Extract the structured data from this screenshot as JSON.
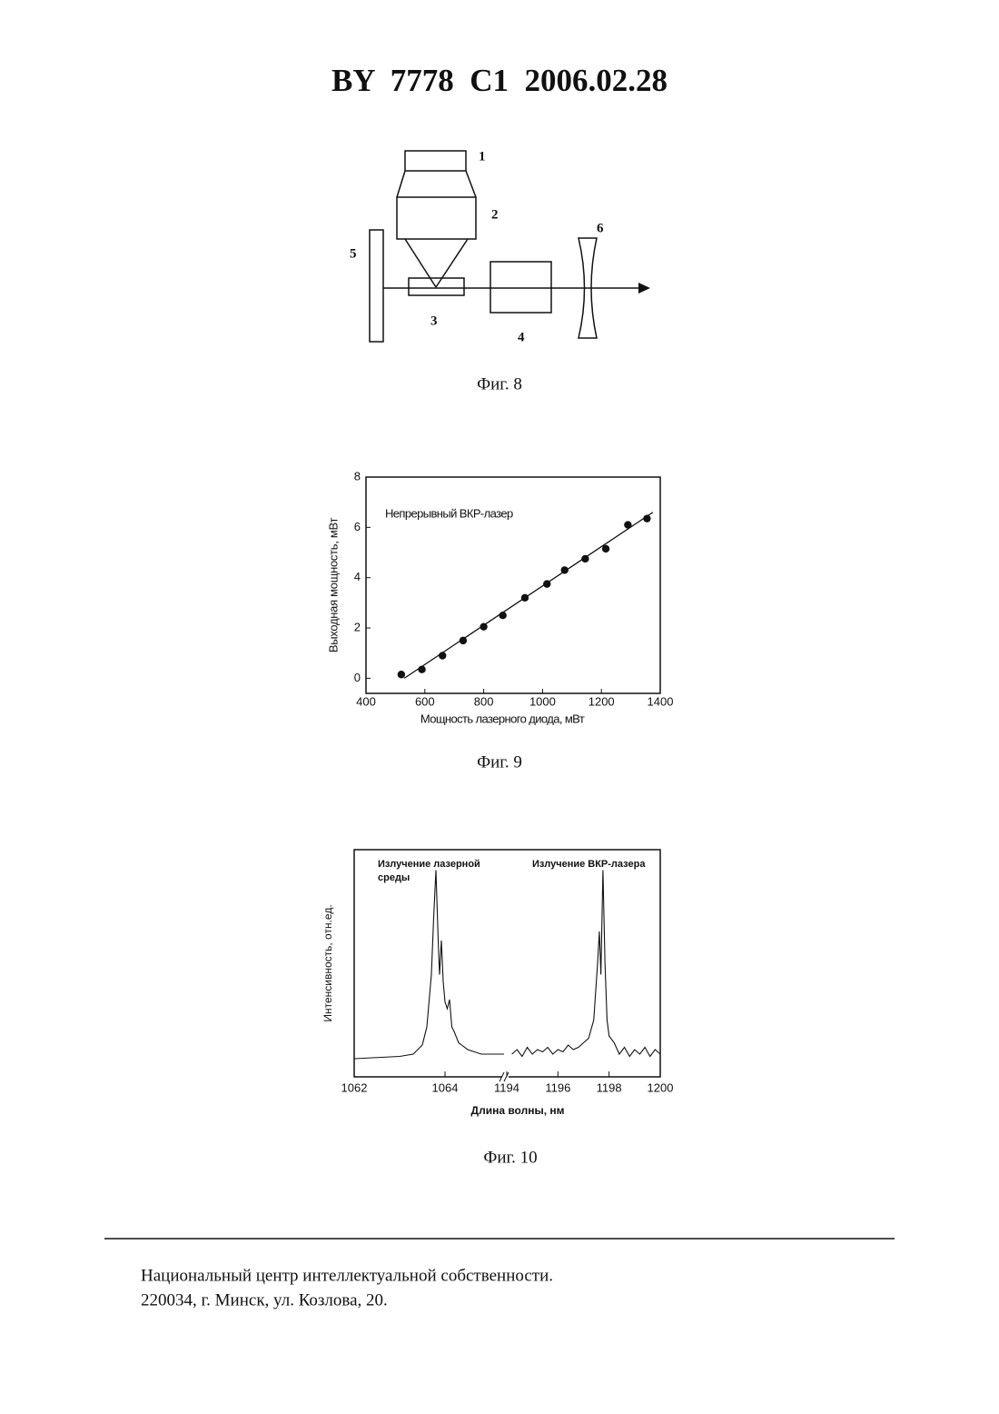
{
  "header": {
    "title": "BY  7778  C1  2006.02.28"
  },
  "figure8": {
    "labels": [
      "1",
      "2",
      "3",
      "4",
      "5",
      "6"
    ],
    "caption": "Фиг. 8"
  },
  "captions": [
    "Фиг. 9",
    "Фиг. 10"
  ],
  "chart_data": [
    {
      "type": "scatter",
      "annotation": "Непрерывный ВКР-лазер",
      "x_label": "Мощность лазерного диода, мВт",
      "y_label": "Выходная мощность, мВт",
      "xlim": [
        400,
        1400
      ],
      "xticks": [
        400,
        600,
        800,
        1000,
        1200,
        1400
      ],
      "ylim": [
        -0.6,
        8
      ],
      "yticks": [
        0,
        2,
        4,
        6,
        8
      ],
      "color": "#111111",
      "series": [
        {
          "type": "scatter",
          "x": [
            520,
            590,
            660,
            730,
            800,
            865,
            940,
            1015,
            1075,
            1145,
            1215,
            1290,
            1355
          ],
          "values": [
            0.15,
            0.35,
            0.9,
            1.5,
            2.05,
            2.5,
            3.2,
            3.75,
            4.3,
            4.75,
            5.15,
            6.1,
            6.35
          ]
        },
        {
          "type": "line",
          "x": [
            530,
            1375
          ],
          "values": [
            0,
            6.6
          ]
        }
      ]
    },
    {
      "type": "line",
      "annotations": [
        [
          "Излучение лазерной",
          "среды"
        ],
        [
          "Излучение ВКР-лазера"
        ]
      ],
      "x_label": "Длина волны, нм",
      "y_label": "Интенсивность, отн.ед.",
      "ylim": [
        0,
        1
      ],
      "color": "#111111",
      "x_segments": [
        {
          "xlim": [
            1062,
            1065.3
          ],
          "xticks": [
            1062,
            1064
          ]
        },
        {
          "xlim": [
            1194,
            1200
          ],
          "xticks": [
            1194,
            1196,
            1198,
            1200
          ]
        }
      ],
      "series": [
        {
          "segment": 0,
          "x": [
            1062,
            1062.5,
            1063,
            1063.3,
            1063.5,
            1063.6,
            1063.7,
            1063.75,
            1063.8,
            1063.85,
            1063.88,
            1063.92,
            1063.96,
            1064.0,
            1064.05,
            1064.1,
            1064.15,
            1064.2,
            1064.3,
            1064.5,
            1064.8,
            1065.3
          ],
          "values": [
            0.08,
            0.085,
            0.09,
            0.1,
            0.14,
            0.22,
            0.45,
            0.7,
            0.91,
            0.6,
            0.45,
            0.6,
            0.42,
            0.33,
            0.3,
            0.34,
            0.22,
            0.2,
            0.15,
            0.12,
            0.1,
            0.1
          ]
        },
        {
          "segment": 1,
          "x": [
            1194.2,
            1194.4,
            1194.6,
            1194.8,
            1195.0,
            1195.2,
            1195.4,
            1195.6,
            1195.8,
            1196.0,
            1196.2,
            1196.4,
            1196.6,
            1196.8,
            1197.0,
            1197.2,
            1197.4,
            1197.55,
            1197.62,
            1197.68,
            1197.76,
            1197.84,
            1197.92,
            1198.0,
            1198.2,
            1198.4,
            1198.6,
            1198.8,
            1199.0,
            1199.2,
            1199.4,
            1199.6,
            1199.8,
            1200.0
          ],
          "values": [
            0.1,
            0.12,
            0.09,
            0.13,
            0.1,
            0.12,
            0.11,
            0.13,
            0.1,
            0.12,
            0.11,
            0.14,
            0.12,
            0.13,
            0.15,
            0.17,
            0.25,
            0.5,
            0.64,
            0.45,
            0.91,
            0.5,
            0.25,
            0.18,
            0.15,
            0.1,
            0.13,
            0.09,
            0.12,
            0.1,
            0.13,
            0.09,
            0.12,
            0.1
          ]
        }
      ]
    }
  ],
  "footer": {
    "lines": [
      "Национальный центр интеллектуальной собственности.",
      "220034, г. Минск, ул. Козлова, 20."
    ]
  }
}
